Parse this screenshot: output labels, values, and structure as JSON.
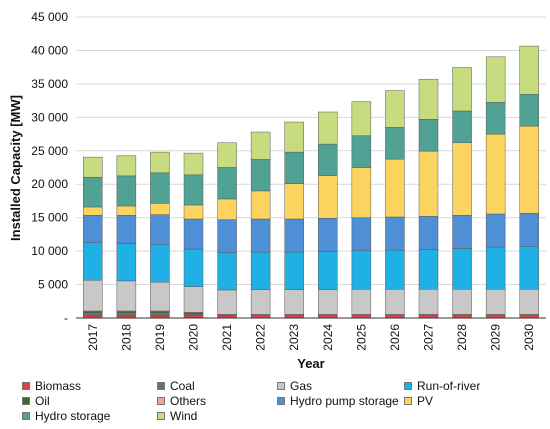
{
  "chart_data": {
    "type": "bar",
    "stacked": true,
    "xlabel": "Year",
    "ylabel": "Installed Capacity [MW]",
    "ylim": [
      0,
      45000
    ],
    "yticks": [
      {
        "value": 0,
        "label": "-"
      },
      {
        "value": 5000,
        "label": "5 000"
      },
      {
        "value": 10000,
        "label": "10 000"
      },
      {
        "value": 15000,
        "label": "15 000"
      },
      {
        "value": 20000,
        "label": "20 000"
      },
      {
        "value": 25000,
        "label": "25 000"
      },
      {
        "value": 30000,
        "label": "30 000"
      },
      {
        "value": 35000,
        "label": "35 000"
      },
      {
        "value": 40000,
        "label": "40 000"
      },
      {
        "value": 45000,
        "label": "45 000"
      }
    ],
    "categories": [
      "2017",
      "2018",
      "2019",
      "2020",
      "2021",
      "2022",
      "2023",
      "2024",
      "2025",
      "2026",
      "2027",
      "2028",
      "2029",
      "2030"
    ],
    "grid": true,
    "legend_position": "bottom",
    "series": [
      {
        "name": "Biomass",
        "color": "#e0424a",
        "values": [
          400,
          400,
          400,
          350,
          400,
          450,
          450,
          450,
          450,
          450,
          450,
          450,
          450,
          450
        ]
      },
      {
        "name": "Coal",
        "color": "#6f6f6f",
        "values": [
          400,
          400,
          400,
          250,
          0,
          0,
          0,
          0,
          0,
          0,
          0,
          0,
          0,
          0
        ]
      },
      {
        "name": "Oil",
        "color": "#3f6b2a",
        "values": [
          150,
          150,
          150,
          150,
          50,
          0,
          0,
          0,
          0,
          0,
          0,
          0,
          0,
          0
        ]
      },
      {
        "name": "Others",
        "color": "#f4a39a",
        "values": [
          100,
          100,
          100,
          100,
          100,
          100,
          100,
          100,
          100,
          100,
          100,
          100,
          100,
          100
        ]
      },
      {
        "name": "Gas",
        "color": "#c8c8c8",
        "values": [
          4600,
          4500,
          4300,
          3850,
          3650,
          3700,
          3700,
          3700,
          3750,
          3750,
          3750,
          3750,
          3750,
          3750
        ]
      },
      {
        "name": "Run-of-river",
        "color": "#1fb0e6",
        "values": [
          5600,
          5600,
          5600,
          5600,
          5600,
          5600,
          5600,
          5700,
          5750,
          5850,
          5950,
          6100,
          6300,
          6400
        ]
      },
      {
        "name": "Hydro pump storage",
        "color": "#4f8fd6",
        "values": [
          4100,
          4200,
          4500,
          4500,
          4900,
          4950,
          4950,
          4950,
          4950,
          4950,
          4950,
          4950,
          4950,
          4950
        ]
      },
      {
        "name": "PV",
        "color": "#fbd460",
        "values": [
          1250,
          1400,
          1700,
          2100,
          3100,
          4200,
          5300,
          6400,
          7500,
          8650,
          9750,
          10850,
          11950,
          13050
        ]
      },
      {
        "name": "Hydro storage",
        "color": "#4fa294",
        "values": [
          4450,
          4500,
          4550,
          4500,
          4700,
          4700,
          4700,
          4700,
          4750,
          4750,
          4750,
          4750,
          4750,
          4750
        ]
      },
      {
        "name": "Wind",
        "color": "#c6dc7f",
        "values": [
          3000,
          3000,
          3100,
          3250,
          3700,
          4100,
          4500,
          4800,
          5100,
          5500,
          6000,
          6500,
          6800,
          7200
        ]
      }
    ]
  }
}
